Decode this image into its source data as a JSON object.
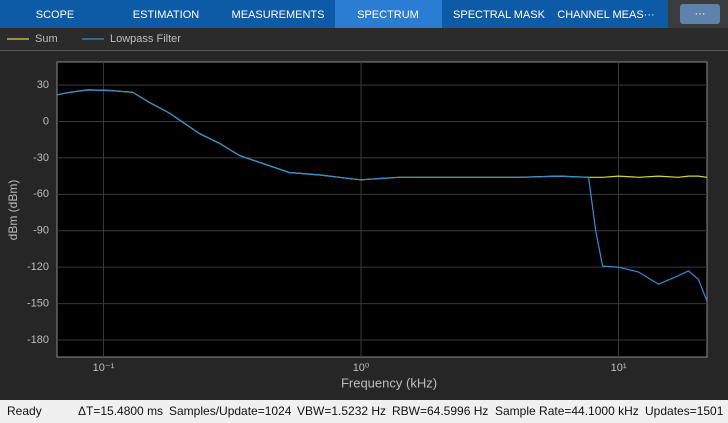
{
  "toolbar": {
    "tabs": [
      "SCOPE",
      "ESTIMATION",
      "MEASUREMENTS",
      "SPECTRUM",
      "SPECTRAL MASK",
      "CHANNEL MEAS···"
    ],
    "more": "···"
  },
  "chart_data": {
    "type": "line",
    "x_label": "Frequency (kHz)",
    "y_label": "dBm (dBm)",
    "x": [
      0.066,
      0.074,
      0.087,
      0.106,
      0.13,
      0.15,
      0.18,
      0.236,
      0.282,
      0.337,
      0.421,
      0.526,
      0.687,
      0.822,
      1.0,
      1.4,
      2.0,
      2.87,
      4.1,
      5.85,
      7.65,
      8.15,
      8.67,
      10,
      11.96,
      14.3,
      17.09,
      18.68,
      20.42,
      22.05
    ],
    "series": [
      {
        "name": "Sum",
        "color": "#d9d92b",
        "values": [
          22,
          24,
          26,
          25.5,
          24,
          16,
          7,
          -10,
          -18,
          -28,
          -35,
          -42,
          -44,
          -46,
          -48,
          -46,
          -46,
          -46,
          -46,
          -45,
          -46,
          -46,
          -46,
          -45,
          -46,
          -45,
          -46,
          -45,
          -45,
          -46
        ]
      },
      {
        "name": "Lowpass Filter",
        "color": "#2f8fd8",
        "values": [
          22,
          24,
          26,
          25.5,
          24,
          16,
          7,
          -10,
          -18,
          -28,
          -35,
          -42,
          -44,
          -46,
          -48,
          -46,
          -46,
          -46,
          -46,
          -45,
          -46,
          -90,
          -119,
          -120,
          -124,
          -134,
          -127,
          -123,
          -130,
          -148
        ]
      }
    ],
    "xscale": "log",
    "xlim": [
      0.066,
      22.05
    ],
    "xticks": [
      {
        "value": 0.1,
        "label": "10⁻¹"
      },
      {
        "value": 1,
        "label": "10⁰"
      },
      {
        "value": 10,
        "label": "10¹"
      }
    ],
    "ylim": [
      -194,
      49
    ],
    "yticks": [
      30,
      0,
      -30,
      -60,
      -90,
      -120,
      -150,
      -180
    ],
    "grid": true,
    "legend": "top-left"
  },
  "status": [
    "Ready",
    "ΔT=15.4800 ms",
    "Samples/Update=1024",
    "VBW=1.5232 Hz",
    "RBW=64.5996 Hz",
    "Sample Rate=44.1000 kHz",
    "Updates=1501"
  ]
}
